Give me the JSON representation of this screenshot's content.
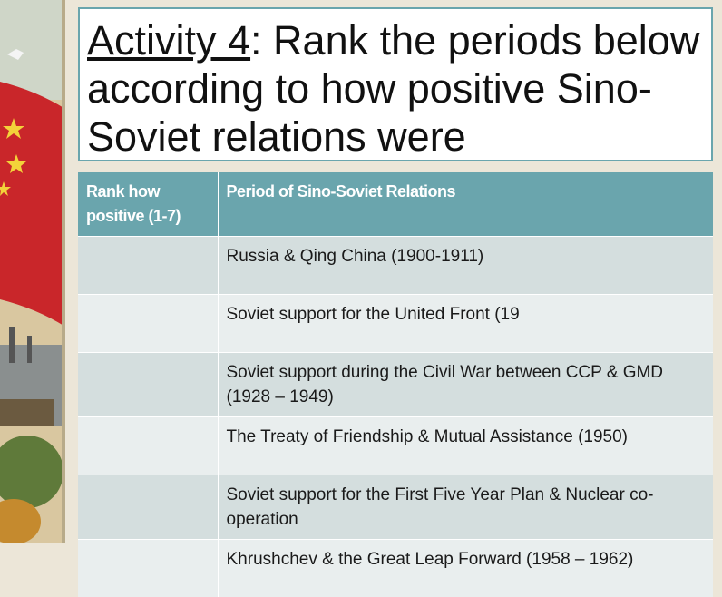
{
  "title": {
    "highlight": "Activity 4",
    "text": ": Rank the periods below according to how positive Sino-Soviet relations were"
  },
  "table": {
    "header": [
      "Rank how positive (1-7)",
      "Period of Sino-Soviet Relations"
    ],
    "periods": [
      "Russia & Qing China (1900-1911)",
      "Soviet support for the United Front (19",
      "Soviet support during the Civil War between CCP & GMD (1928 – 1949)",
      "The Treaty of Friendship & Mutual Assistance (1950)",
      "Soviet support for the First Five Year Plan & Nuclear co-operation",
      "Khrushchev & the Great Leap Forward (1958 – 1962)"
    ]
  }
}
